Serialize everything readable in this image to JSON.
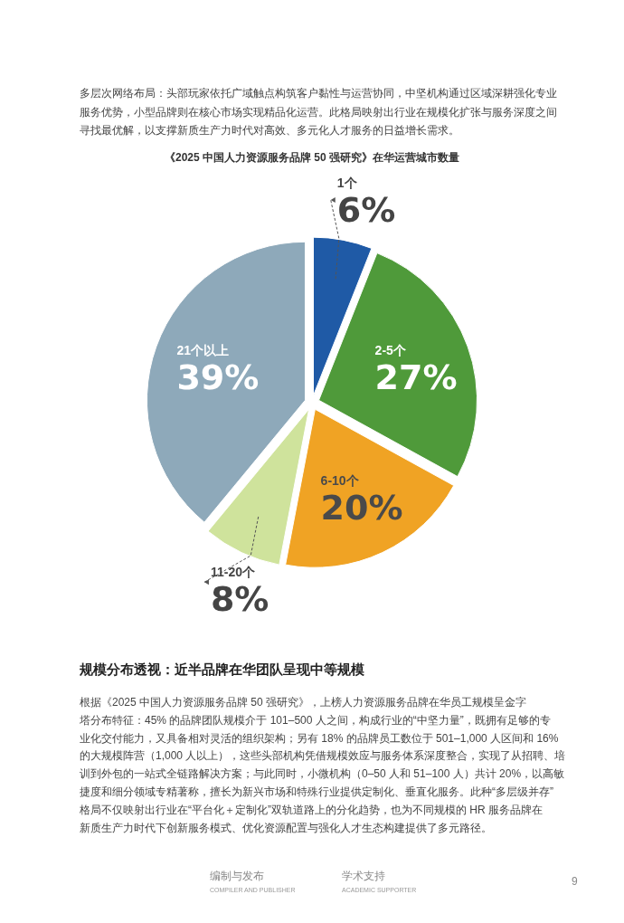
{
  "chart_data": {
    "type": "pie",
    "title": "《2025 中国人力资源服务品牌 50 强研究》在华运营城市数量",
    "categories": [
      "1个",
      "2-5个",
      "6-10个",
      "11-20个",
      "21个以上"
    ],
    "values": [
      6,
      27,
      20,
      8,
      39
    ],
    "value_labels": [
      "6%",
      "27%",
      "20%",
      "8%",
      "39%"
    ],
    "colors": [
      "#1f5aa6",
      "#4f9a3a",
      "#f0a324",
      "#cfe39c",
      "#8ea9ba"
    ],
    "annotations": [
      "多层次网络布局：头部玩家依托广域触点构筑客户黏性与运营协同，中坚机构通过区域深耕强化专业",
      "服务优势，小型品牌则在核心市场实现精品化运营。此格局映射出行业在规模化扩张与服务深度之间",
      "寻找最优解，以支撑新质生产力时代对高效、多元化人才服务的日益增长需求。",
      "规模分布透视：近半品牌在华团队呈现中等规模",
      "根据《2025 中国人力资源服务品牌 50 强研究》，上榜人力资源服务品牌在华员工规模呈金字",
      "塔分布特征：45% 的品牌团队规模介于 101–500 人之间，构成行业的“中坚力量”，既拥有足够的专",
      "业化交付能力，又具备相对灵活的组织架构；另有 18% 的品牌员工数位于 501–1,000 人区间和 16%",
      "的大规模阵营（1,000 人以上），这些头部机构凭借规模效应与服务体系深度整合，实现了从招聘、培",
      "训到外包的一站式全链路解决方案；与此同时，小微机构（0–50 人和 51–100 人）共计 20%，以高敏",
      "捷度和细分领域专精著称，擅长为新兴市场和特殊行业提供定制化、垂直化服务。此种“多层级并存”",
      "格局不仅映射出行业在“平台化＋定制化”双轨道路上的分化趋势，也为不同规模的 HR 服务品牌在",
      "新质生产力时代下创新服务模式、优化资源配置与强化人才生态构建提供了多元路径。",
      "编制与发布",
      "COMPILER AND PUBLISHER",
      "学术支持",
      "ACADEMIC SUPPORTER",
      "9"
    ]
  }
}
